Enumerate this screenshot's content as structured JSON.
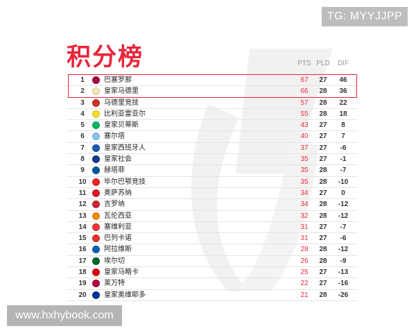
{
  "watermark_top": "TG: MYYJJPP",
  "watermark_bottom": "www.hxhybook.com",
  "title": "积分榜",
  "columns": {
    "pts": "PTS",
    "pld": "PLD",
    "dif": "DIF"
  },
  "colors": {
    "accent": "#e8273c",
    "highlight_border": "#e8273c"
  },
  "standings": [
    {
      "pos": "1",
      "team": "巴塞罗那",
      "pts": "67",
      "pld": "27",
      "dif": "46",
      "crest_icon": "barcelona-crest-icon",
      "crest_color": "#a50044"
    },
    {
      "pos": "2",
      "team": "皇家马德里",
      "pts": "66",
      "pld": "28",
      "dif": "36",
      "crest_icon": "real-madrid-crest-icon",
      "crest_color": "#f3e7b0"
    },
    {
      "pos": "3",
      "team": "马德里竞技",
      "pts": "57",
      "pld": "28",
      "dif": "22",
      "crest_icon": "atletico-crest-icon",
      "crest_color": "#cb3524"
    },
    {
      "pos": "4",
      "team": "比利亚雷亚尔",
      "pts": "55",
      "pld": "28",
      "dif": "18",
      "crest_icon": "villarreal-crest-icon",
      "crest_color": "#f5e025"
    },
    {
      "pos": "5",
      "team": "皇家贝蒂斯",
      "pts": "43",
      "pld": "27",
      "dif": "8",
      "crest_icon": "betis-crest-icon",
      "crest_color": "#0bb363"
    },
    {
      "pos": "6",
      "team": "塞尔塔",
      "pts": "40",
      "pld": "27",
      "dif": "7",
      "crest_icon": "celta-crest-icon",
      "crest_color": "#8ac3ee"
    },
    {
      "pos": "7",
      "team": "皇家西班牙人",
      "pts": "37",
      "pld": "27",
      "dif": "-6",
      "crest_icon": "espanyol-crest-icon",
      "crest_color": "#1a5ab4"
    },
    {
      "pos": "8",
      "team": "皇家社会",
      "pts": "35",
      "pld": "27",
      "dif": "-1",
      "crest_icon": "real-sociedad-crest-icon",
      "crest_color": "#143c8b"
    },
    {
      "pos": "9",
      "team": "赫塔菲",
      "pts": "35",
      "pld": "28",
      "dif": "-7",
      "crest_icon": "getafe-crest-icon",
      "crest_color": "#005999"
    },
    {
      "pos": "10",
      "team": "毕尔巴鄂竞技",
      "pts": "35",
      "pld": "28",
      "dif": "-10",
      "crest_icon": "athletic-crest-icon",
      "crest_color": "#ee2523"
    },
    {
      "pos": "11",
      "team": "奥萨苏纳",
      "pts": "34",
      "pld": "27",
      "dif": "0",
      "crest_icon": "osasuna-crest-icon",
      "crest_color": "#d91a21"
    },
    {
      "pos": "12",
      "team": "吉罗纳",
      "pts": "34",
      "pld": "28",
      "dif": "-12",
      "crest_icon": "girona-crest-icon",
      "crest_color": "#cd2534"
    },
    {
      "pos": "13",
      "team": "瓦伦西亚",
      "pts": "32",
      "pld": "28",
      "dif": "-12",
      "crest_icon": "valencia-crest-icon",
      "crest_color": "#f18e00"
    },
    {
      "pos": "14",
      "team": "塞维利亚",
      "pts": "31",
      "pld": "27",
      "dif": "-7",
      "crest_icon": "sevilla-crest-icon",
      "crest_color": "#f43333"
    },
    {
      "pos": "15",
      "team": "巴列卡诺",
      "pts": "31",
      "pld": "27",
      "dif": "-6",
      "crest_icon": "rayo-crest-icon",
      "crest_color": "#e53027"
    },
    {
      "pos": "16",
      "team": "阿拉维斯",
      "pts": "28",
      "pld": "28",
      "dif": "-12",
      "crest_icon": "alaves-crest-icon",
      "crest_color": "#0761af"
    },
    {
      "pos": "17",
      "team": "埃尔切",
      "pts": "26",
      "pld": "28",
      "dif": "-9",
      "crest_icon": "elche-crest-icon",
      "crest_color": "#05642c"
    },
    {
      "pos": "18",
      "team": "皇家马略卡",
      "pts": "25",
      "pld": "27",
      "dif": "-13",
      "crest_icon": "mallorca-crest-icon",
      "crest_color": "#e20613"
    },
    {
      "pos": "19",
      "team": "莱万特",
      "pts": "22",
      "pld": "27",
      "dif": "-16",
      "crest_icon": "levante-crest-icon",
      "crest_color": "#b4053f"
    },
    {
      "pos": "20",
      "team": "皇家奥维耶多",
      "pts": "21",
      "pld": "28",
      "dif": "-26",
      "crest_icon": "oviedo-crest-icon",
      "crest_color": "#0032a0"
    }
  ]
}
